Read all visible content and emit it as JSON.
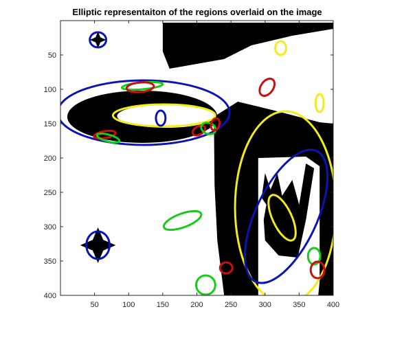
{
  "chart_data": {
    "type": "image-overlay",
    "title": "Elliptic representaiton of the regions overlaid on the image",
    "xlabel": "",
    "ylabel": "",
    "xlim": [
      0,
      400
    ],
    "ylim": [
      400,
      0
    ],
    "y_axis_direction": "reversed",
    "grid": false,
    "xticks": [
      50,
      100,
      150,
      200,
      250,
      300,
      350,
      400
    ],
    "yticks": [
      50,
      100,
      150,
      200,
      250,
      300,
      350,
      400
    ],
    "image": {
      "description_colors": {
        "foreground": "#000000",
        "background": "#ffffff"
      },
      "regions": [
        {
          "name": "top-right-blob",
          "points": [
            [
              150,
              3
            ],
            [
              400,
              3
            ],
            [
              400,
              12
            ],
            [
              340,
              22
            ],
            [
              280,
              36
            ],
            [
              240,
              56
            ],
            [
              160,
              70
            ],
            [
              150,
              45
            ]
          ]
        },
        {
          "name": "left-large-ellipse",
          "shape": "ellipse",
          "cx": 120,
          "cy": 140,
          "rx": 110,
          "ry": 38
        },
        {
          "name": "right-diagonal-band",
          "points": [
            [
              225,
              140
            ],
            [
              260,
              118
            ],
            [
              310,
              130
            ],
            [
              380,
              148
            ],
            [
              400,
              150
            ],
            [
              400,
              400
            ],
            [
              240,
              400
            ],
            [
              230,
              320
            ],
            [
              226,
              240
            ]
          ]
        },
        {
          "name": "small-star-top",
          "shape": "star",
          "cx": 55,
          "cy": 28,
          "r": 12
        },
        {
          "name": "small-star-bottom",
          "shape": "star",
          "cx": 55,
          "cy": 327,
          "r": 26
        }
      ],
      "white_cutouts": [
        {
          "name": "center-ellipse-hole",
          "shape": "ellipse",
          "cx": 155,
          "cy": 139,
          "rx": 72,
          "ry": 17
        },
        {
          "name": "right-square-hole",
          "points": [
            [
              290,
              200
            ],
            [
              360,
              198
            ],
            [
              380,
              212
            ],
            [
              380,
              380
            ],
            [
              378,
              400
            ],
            [
              290,
              400
            ],
            [
              290,
              214
            ]
          ]
        }
      ],
      "inner_shapes": [
        {
          "name": "crown",
          "points": [
            [
              300,
              222
            ],
            [
              308,
              246
            ],
            [
              318,
              222
            ],
            [
              325,
              255
            ],
            [
              340,
              232
            ],
            [
              350,
              268
            ],
            [
              360,
              208
            ],
            [
              372,
              215
            ],
            [
              360,
              290
            ],
            [
              348,
              345
            ],
            [
              320,
              342
            ],
            [
              300,
              320
            ],
            [
              298,
              290
            ],
            [
              302,
              268
            ],
            [
              295,
              258
            ]
          ]
        }
      ]
    },
    "ellipses": [
      {
        "color": "blue",
        "cx": 55,
        "cy": 28,
        "rx": 12,
        "ry": 11,
        "angle": 0
      },
      {
        "color": "yellow",
        "cx": 323,
        "cy": 40,
        "rx": 8,
        "ry": 10,
        "angle": 0
      },
      {
        "color": "red",
        "cx": 303,
        "cy": 97,
        "rx": 14,
        "ry": 9,
        "angle": -55
      },
      {
        "color": "yellow",
        "cx": 380,
        "cy": 120,
        "rx": 6,
        "ry": 13,
        "angle": 0
      },
      {
        "color": "blue",
        "cx": 122,
        "cy": 134,
        "rx": 126,
        "ry": 47,
        "angle": 0
      },
      {
        "color": "green",
        "cx": 120,
        "cy": 95,
        "rx": 30,
        "ry": 5,
        "angle": -5
      },
      {
        "color": "red",
        "cx": 117,
        "cy": 97,
        "rx": 20,
        "ry": 7,
        "angle": -5
      },
      {
        "color": "yellow",
        "cx": 152,
        "cy": 138,
        "rx": 75,
        "ry": 16,
        "angle": 0
      },
      {
        "color": "blue",
        "cx": 147,
        "cy": 142,
        "rx": 7,
        "ry": 11,
        "angle": 0
      },
      {
        "color": "red",
        "cx": 203,
        "cy": 160,
        "rx": 10,
        "ry": 6,
        "angle": -30
      },
      {
        "color": "green",
        "cx": 217,
        "cy": 157,
        "rx": 11,
        "ry": 8,
        "angle": 20
      },
      {
        "color": "red",
        "cx": 227,
        "cy": 151,
        "rx": 9,
        "ry": 6,
        "angle": -72
      },
      {
        "color": "red",
        "cx": 65,
        "cy": 166,
        "rx": 16,
        "ry": 5,
        "angle": -10
      },
      {
        "color": "green",
        "cx": 70,
        "cy": 171,
        "rx": 17,
        "ry": 5,
        "angle": 15
      },
      {
        "color": "yellow",
        "cx": 330,
        "cy": 272,
        "rx": 74,
        "ry": 140,
        "angle": 0
      },
      {
        "color": "blue",
        "cx": 331,
        "cy": 285,
        "rx": 45,
        "ry": 105,
        "angle": 25
      },
      {
        "color": "yellow",
        "cx": 325,
        "cy": 287,
        "rx": 14,
        "ry": 36,
        "angle": -25
      },
      {
        "color": "green",
        "cx": 179,
        "cy": 291,
        "rx": 29,
        "ry": 10,
        "angle": -20
      },
      {
        "color": "blue",
        "cx": 55,
        "cy": 327,
        "rx": 17,
        "ry": 20,
        "angle": 0
      },
      {
        "color": "green",
        "cx": 372,
        "cy": 343,
        "rx": 9,
        "ry": 12,
        "angle": 0
      },
      {
        "color": "red",
        "cx": 377,
        "cy": 363,
        "rx": 10,
        "ry": 12,
        "angle": 0
      },
      {
        "color": "red",
        "cx": 243,
        "cy": 360,
        "rx": 9,
        "ry": 8,
        "angle": 0
      },
      {
        "color": "green",
        "cx": 213,
        "cy": 385,
        "rx": 14,
        "ry": 14,
        "angle": 0
      }
    ],
    "colors": {
      "blue": "#0a14b4",
      "yellow": "#f2ec1a",
      "red": "#cc0e0e",
      "green": "#16cc16"
    }
  }
}
